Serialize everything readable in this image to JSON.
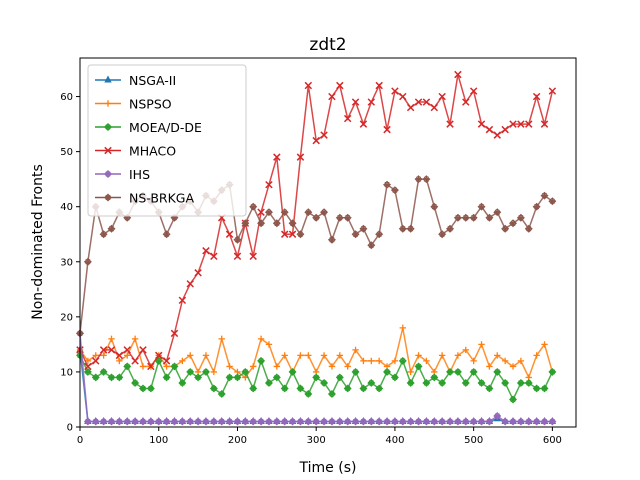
{
  "chart_data": {
    "type": "line",
    "title": "zdt2",
    "xlabel": "Time (s)",
    "ylabel": "Non-dominated Fronts",
    "xlim": [
      0,
      630
    ],
    "ylim": [
      0,
      67
    ],
    "xticks": [
      0,
      100,
      200,
      300,
      400,
      500,
      600
    ],
    "yticks": [
      0,
      10,
      20,
      30,
      40,
      50,
      60
    ],
    "grid": false,
    "legend_position": "top-left",
    "x": [
      0,
      10,
      20,
      30,
      40,
      50,
      60,
      70,
      80,
      90,
      100,
      110,
      120,
      130,
      140,
      150,
      160,
      170,
      180,
      190,
      200,
      210,
      220,
      230,
      240,
      250,
      260,
      270,
      280,
      290,
      300,
      310,
      320,
      330,
      340,
      350,
      360,
      370,
      380,
      390,
      400,
      410,
      420,
      430,
      440,
      450,
      460,
      470,
      480,
      490,
      500,
      510,
      520,
      530,
      540,
      550,
      560,
      570,
      580,
      590,
      600
    ],
    "series": [
      {
        "name": "NSGA-II",
        "color": "#1f77b4",
        "marker": "triangle",
        "values": [
          14,
          1,
          1,
          1,
          1,
          1,
          1,
          1,
          1,
          1,
          1,
          1,
          1,
          1,
          1,
          1,
          1,
          1,
          1,
          1,
          1,
          1,
          1,
          1,
          1,
          1,
          1,
          1,
          1,
          1,
          1,
          1,
          1,
          1,
          1,
          1,
          1,
          1,
          1,
          1,
          1,
          1,
          1,
          1,
          1,
          1,
          1,
          1,
          1,
          1,
          1,
          1,
          1,
          1.5,
          1,
          1,
          1,
          1,
          1,
          1,
          1
        ]
      },
      {
        "name": "NSPSO",
        "color": "#ff7f0e",
        "marker": "plus",
        "values": [
          14,
          12,
          13,
          13,
          16,
          12,
          13,
          16,
          11,
          11,
          13,
          11,
          11,
          12,
          13,
          10,
          13,
          10,
          16,
          11,
          10,
          9,
          11,
          16,
          15,
          11,
          13,
          10,
          13,
          13,
          10,
          13,
          11,
          13,
          11,
          14,
          12,
          12,
          12,
          11,
          12,
          18,
          10,
          13,
          12,
          10,
          13,
          10,
          13,
          14,
          12,
          15,
          11,
          13,
          12,
          11,
          12,
          9,
          13,
          15,
          10
        ]
      },
      {
        "name": "MOEA/D-DE",
        "color": "#2ca02c",
        "marker": "star",
        "values": [
          13,
          10,
          9,
          10,
          9,
          9,
          11,
          8,
          7,
          7,
          12,
          9,
          11,
          8,
          10,
          9,
          10,
          7,
          6,
          9,
          9,
          10,
          7,
          12,
          8,
          9,
          7,
          10,
          7,
          6,
          9,
          8,
          6,
          9,
          7,
          10,
          7,
          8,
          7,
          10,
          9,
          12,
          8,
          11,
          8,
          9,
          8,
          10,
          10,
          8,
          10,
          8,
          7,
          10,
          8,
          5,
          8,
          8,
          7,
          7,
          10
        ]
      },
      {
        "name": "MHACO",
        "color": "#d62728",
        "marker": "x",
        "values": [
          14,
          11,
          12,
          14,
          14,
          13,
          14,
          12,
          14,
          11,
          13,
          12,
          17,
          23,
          26,
          28,
          32,
          31,
          38,
          35,
          31,
          37,
          31,
          39,
          44,
          49,
          35,
          35,
          49,
          62,
          52,
          53,
          60,
          62,
          56,
          59,
          55,
          59,
          62,
          54,
          61,
          60,
          58,
          59,
          59,
          58,
          60,
          55,
          64,
          59,
          61,
          55,
          54,
          53,
          54,
          55,
          55,
          55,
          60,
          55,
          61
        ]
      },
      {
        "name": "IHS",
        "color": "#9467bd",
        "marker": "star",
        "values": [
          17,
          1,
          1,
          1,
          1,
          1,
          1,
          1,
          1,
          1,
          1,
          1,
          1,
          1,
          1,
          1,
          1,
          1,
          1,
          1,
          1,
          1,
          1,
          1,
          1,
          1,
          1,
          1,
          1,
          1,
          1,
          1,
          1,
          1,
          1,
          1,
          1,
          1,
          1,
          1,
          1,
          1,
          1,
          1,
          1,
          1,
          1,
          1,
          1,
          1,
          1,
          1,
          1,
          2,
          1,
          1,
          1,
          1,
          1,
          1,
          1
        ]
      },
      {
        "name": "NS-BRKGA",
        "color": "#8c564b",
        "marker": "star",
        "values": [
          17,
          30,
          40,
          35,
          36,
          39,
          38,
          41,
          42,
          41,
          39,
          35,
          38,
          40,
          41,
          39,
          42,
          41,
          43,
          44,
          34,
          37,
          40,
          37,
          39,
          37,
          39,
          37,
          35,
          39,
          38,
          39,
          34,
          38,
          38,
          35,
          36,
          33,
          35,
          44,
          43,
          36,
          36,
          45,
          45,
          40,
          35,
          36,
          38,
          38,
          38,
          40,
          38,
          39,
          36,
          37,
          38,
          36,
          40,
          42,
          41
        ]
      }
    ]
  }
}
